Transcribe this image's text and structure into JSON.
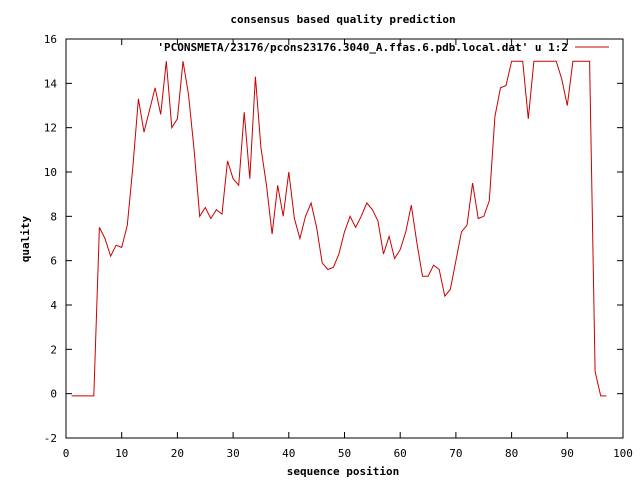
{
  "chart_data": {
    "type": "line",
    "title": "consensus based quality prediction",
    "xlabel": "sequence position",
    "ylabel": "quality",
    "xlim": [
      0,
      100
    ],
    "ylim": [
      -2,
      16
    ],
    "x_ticks": [
      0,
      10,
      20,
      30,
      40,
      50,
      60,
      70,
      80,
      90,
      100
    ],
    "y_ticks": [
      -2,
      0,
      2,
      4,
      6,
      8,
      10,
      12,
      14,
      16
    ],
    "grid": false,
    "legend_position": "top-right",
    "series": [
      {
        "name": "'PCONSMETA/23176/pcons23176.3040_A.ffas.6.pdb.local.dat' u 1:2",
        "color": "#cc0000",
        "x": [
          1,
          2,
          3,
          4,
          5,
          6,
          7,
          8,
          9,
          10,
          11,
          12,
          13,
          14,
          15,
          16,
          17,
          18,
          19,
          20,
          21,
          22,
          23,
          24,
          25,
          26,
          27,
          28,
          29,
          30,
          31,
          32,
          33,
          34,
          35,
          36,
          37,
          38,
          39,
          40,
          41,
          42,
          43,
          44,
          45,
          46,
          47,
          48,
          49,
          50,
          51,
          52,
          53,
          54,
          55,
          56,
          57,
          58,
          59,
          60,
          61,
          62,
          63,
          64,
          65,
          66,
          67,
          68,
          69,
          70,
          71,
          72,
          73,
          74,
          75,
          76,
          77,
          78,
          79,
          80,
          81,
          82,
          83,
          84,
          85,
          86,
          87,
          88,
          89,
          90,
          91,
          92,
          93,
          94,
          95,
          96,
          97
        ],
        "y": [
          -0.1,
          -0.1,
          -0.1,
          -0.1,
          -0.1,
          7.5,
          7.0,
          6.2,
          6.7,
          6.6,
          7.6,
          10.2,
          13.3,
          11.8,
          12.8,
          13.8,
          12.6,
          15.0,
          12.0,
          12.4,
          15.0,
          13.5,
          11.0,
          8.0,
          8.4,
          7.9,
          8.3,
          8.1,
          10.5,
          9.7,
          9.4,
          12.7,
          9.7,
          14.3,
          11.1,
          9.4,
          7.2,
          9.4,
          8.0,
          10.0,
          7.9,
          7.0,
          8.0,
          8.6,
          7.5,
          5.9,
          5.6,
          5.7,
          6.3,
          7.3,
          8.0,
          7.5,
          8.0,
          8.6,
          8.3,
          7.8,
          6.3,
          7.1,
          6.1,
          6.5,
          7.3,
          8.5,
          6.8,
          5.3,
          5.3,
          5.8,
          5.6,
          4.4,
          4.7,
          6.0,
          7.3,
          7.6,
          9.5,
          7.9,
          8.0,
          8.7,
          12.5,
          13.8,
          13.9,
          15.0,
          15.0,
          15.0,
          12.4,
          15.0,
          15.0,
          15.0,
          15.0,
          15.0,
          14.2,
          13.0,
          15.0,
          15.0,
          15.0,
          15.0,
          1.0,
          -0.1,
          -0.1
        ]
      }
    ]
  }
}
